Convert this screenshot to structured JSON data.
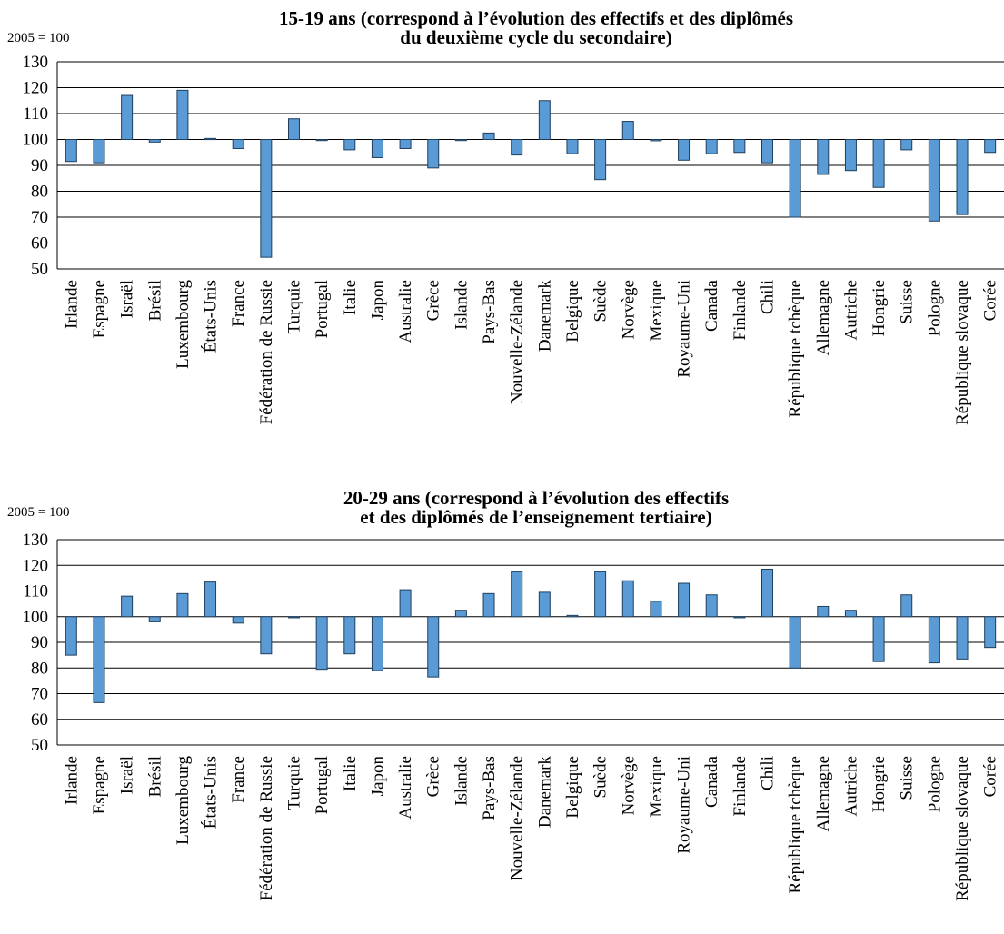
{
  "chart_data": [
    {
      "type": "bar",
      "title_lines": [
        "15-19 ans (correspond à l’évolution des effectifs et des diplômés",
        "du deuxième cycle du secondaire)"
      ],
      "ylabel": "2005 = 100",
      "baseline": 100,
      "ylim": [
        50,
        130
      ],
      "yticks": [
        50,
        60,
        70,
        80,
        90,
        100,
        110,
        120,
        130
      ],
      "grid": true,
      "bar_color": "#5b9bd5",
      "categories": [
        "Irlande",
        "Espagne",
        "Israël",
        "Brésil",
        "Luxembourg",
        "États-Unis",
        "France",
        "Fédération de Russie",
        "Turquie",
        "Portugal",
        "Italie",
        "Japon",
        "Australie",
        "Grèce",
        "Islande",
        "Pays-Bas",
        "Nouvelle-Zélande",
        "Danemark",
        "Belgique",
        "Suède",
        "Norvège",
        "Mexique",
        "Royaume-Uni",
        "Canada",
        "Finlande",
        "Chili",
        "République tchèque",
        "Allemagne",
        "Autriche",
        "Hongrie",
        "Suisse",
        "Pologne",
        "République slovaque",
        "Corée"
      ],
      "values": [
        91.5,
        91,
        117,
        99,
        119,
        100.4,
        96.5,
        54.5,
        108,
        99.8,
        96,
        93,
        96.5,
        89,
        100,
        102.5,
        94,
        115,
        94.5,
        84.5,
        107,
        99.5,
        92,
        94.5,
        95,
        91,
        70,
        86.5,
        88,
        81.5,
        96,
        68.5,
        71,
        95
      ]
    },
    {
      "type": "bar",
      "title_lines": [
        "20-29 ans (correspond à l’évolution des effectifs",
        "et des diplômés de l’enseignement tertiaire)"
      ],
      "ylabel": "2005 = 100",
      "baseline": 100,
      "ylim": [
        50,
        130
      ],
      "yticks": [
        50,
        60,
        70,
        80,
        90,
        100,
        110,
        120,
        130
      ],
      "grid": true,
      "bar_color": "#5b9bd5",
      "categories": [
        "Irlande",
        "Espagne",
        "Israël",
        "Brésil",
        "Luxembourg",
        "États-Unis",
        "France",
        "Fédération de Russie",
        "Turquie",
        "Portugal",
        "Italie",
        "Japon",
        "Australie",
        "Grèce",
        "Islande",
        "Pays-Bas",
        "Nouvelle-Zélande",
        "Danemark",
        "Belgique",
        "Suède",
        "Norvège",
        "Mexique",
        "Royaume-Uni",
        "Canada",
        "Finlande",
        "Chili",
        "République tchèque",
        "Allemagne",
        "Autriche",
        "Hongrie",
        "Suisse",
        "Pologne",
        "République slovaque",
        "Corée"
      ],
      "values": [
        85,
        66.5,
        108,
        98,
        109,
        113.5,
        97.5,
        85.5,
        100,
        79.5,
        85.5,
        79,
        110.5,
        76.5,
        102.5,
        109,
        117.5,
        109.5,
        100.5,
        117.5,
        114,
        106,
        113,
        108.5,
        99.8,
        118.5,
        80,
        104,
        102.5,
        82.5,
        108.5,
        82,
        83.5,
        88
      ]
    }
  ]
}
